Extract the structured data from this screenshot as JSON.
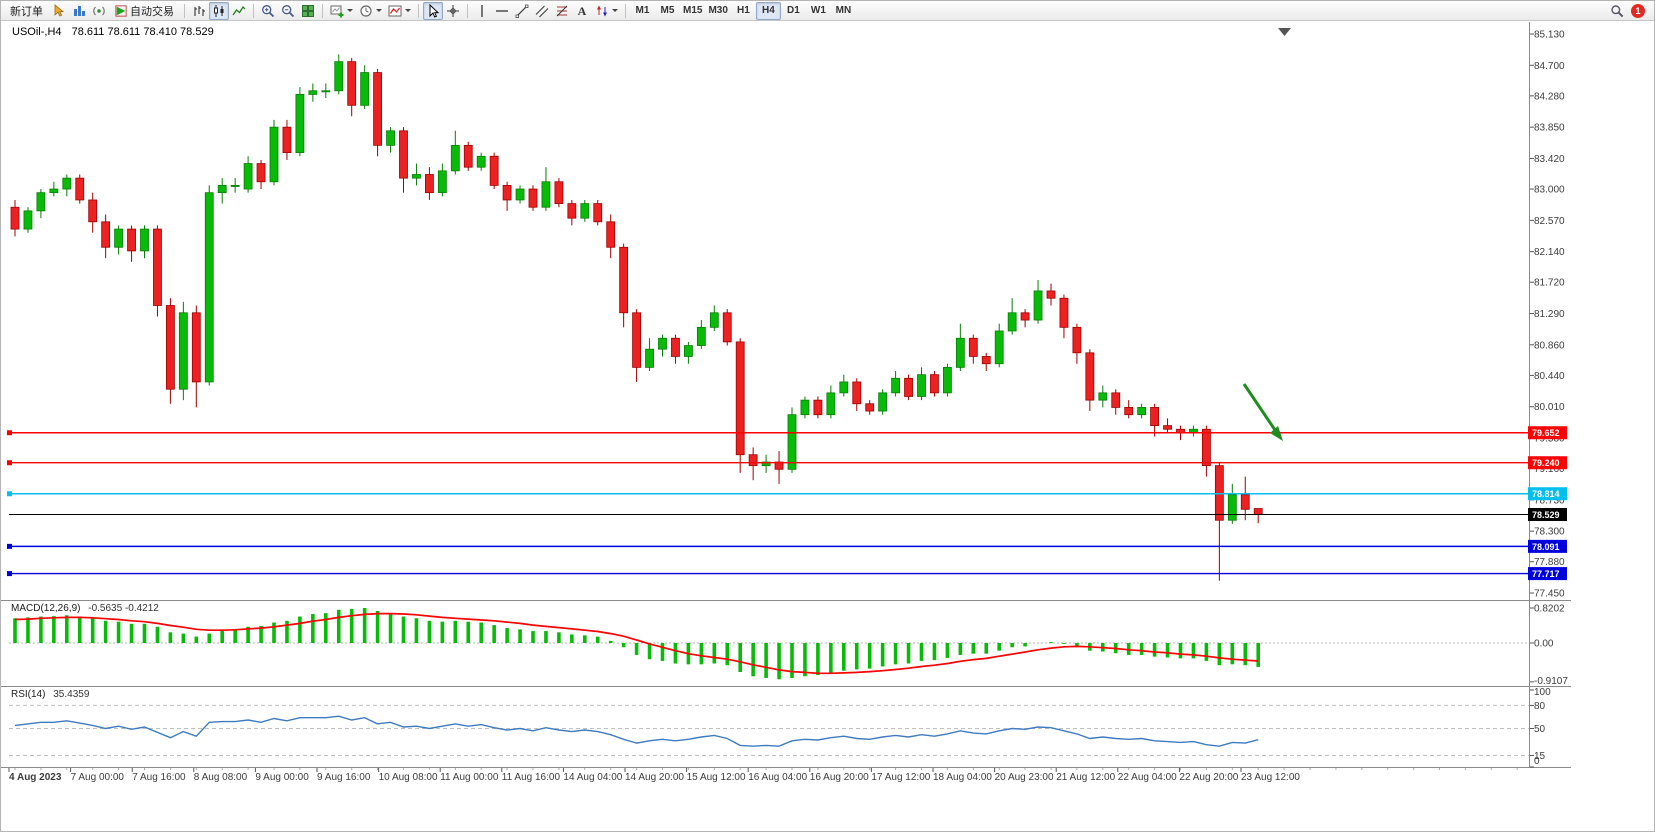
{
  "toolbar": {
    "new_order_label": "新订单",
    "auto_trading_label": "自动交易",
    "timeframes": [
      "M1",
      "M5",
      "M15",
      "M30",
      "H1",
      "H4",
      "D1",
      "W1",
      "MN"
    ],
    "active_timeframe": "H4",
    "notification_count": "1"
  },
  "chart": {
    "symbol_label": "USOil-,H4",
    "ohlc_label": "78.611 78.611 78.410 78.529",
    "macd_label": "MACD(12,26,9)",
    "macd_values": "-0.5635 -0.4212",
    "rsi_label": "RSI(14)",
    "rsi_value": "35.4359"
  },
  "chart_data": {
    "type": "candlestick",
    "symbol": "USOil-",
    "timeframe": "H4",
    "ohlc_display": {
      "open": 78.611,
      "high": 78.611,
      "low": 78.41,
      "close": 78.529
    },
    "y_axis": [
      85.13,
      84.7,
      84.28,
      83.85,
      83.42,
      83.0,
      82.57,
      82.14,
      81.72,
      81.29,
      80.86,
      80.44,
      80.01,
      79.58,
      79.16,
      78.73,
      78.3,
      77.88,
      77.45
    ],
    "x_axis": [
      "4 Aug 2023",
      "7 Aug 00:00",
      "7 Aug 16:00",
      "8 Aug 08:00",
      "9 Aug 00:00",
      "9 Aug 16:00",
      "10 Aug 08:00",
      "11 Aug 00:00",
      "11 Aug 16:00",
      "14 Aug 04:00",
      "14 Aug 20:00",
      "15 Aug 12:00",
      "16 Aug 04:00",
      "16 Aug 20:00",
      "17 Aug 12:00",
      "18 Aug 04:00",
      "20 Aug 23:00",
      "21 Aug 12:00",
      "22 Aug 04:00",
      "22 Aug 20:00",
      "23 Aug 12:00"
    ],
    "colors": {
      "bull": "#09BB09",
      "bear": "#EC2121",
      "bull_dark": "#067d06",
      "bear_dark": "#a00000",
      "macd_signal": "#FF0000",
      "rsi_line": "#3E7BC0",
      "line_red": "#FF0000",
      "line_blue": "#0000DD",
      "line_cyan": "#00BFEF",
      "current": "#000000",
      "arrow": "#1E8C1E"
    },
    "candles": [
      [
        82.75,
        82.85,
        82.35,
        82.45
      ],
      [
        82.45,
        82.75,
        82.4,
        82.7
      ],
      [
        82.7,
        83.0,
        82.6,
        82.95
      ],
      [
        82.95,
        83.1,
        82.9,
        83.0
      ],
      [
        83.0,
        83.2,
        82.9,
        83.15
      ],
      [
        83.15,
        83.2,
        82.8,
        82.85
      ],
      [
        82.85,
        82.95,
        82.4,
        82.55
      ],
      [
        82.55,
        82.65,
        82.05,
        82.2
      ],
      [
        82.2,
        82.5,
        82.1,
        82.45
      ],
      [
        82.45,
        82.5,
        82.0,
        82.15
      ],
      [
        82.15,
        82.5,
        82.05,
        82.45
      ],
      [
        82.45,
        82.5,
        81.25,
        81.4
      ],
      [
        81.4,
        81.5,
        80.05,
        80.25
      ],
      [
        80.25,
        81.45,
        80.1,
        81.3
      ],
      [
        81.3,
        81.4,
        80.0,
        80.35
      ],
      [
        80.35,
        83.05,
        80.3,
        82.95
      ],
      [
        82.95,
        83.15,
        82.8,
        83.05
      ],
      [
        83.05,
        83.15,
        82.95,
        83.05
      ],
      [
        83.0,
        83.45,
        82.95,
        83.35
      ],
      [
        83.35,
        83.4,
        83.0,
        83.1
      ],
      [
        83.1,
        83.95,
        83.05,
        83.85
      ],
      [
        83.85,
        83.95,
        83.4,
        83.5
      ],
      [
        83.5,
        84.4,
        83.45,
        84.3
      ],
      [
        84.3,
        84.45,
        84.2,
        84.35
      ],
      [
        84.35,
        84.45,
        84.25,
        84.35
      ],
      [
        84.35,
        84.85,
        84.3,
        84.75
      ],
      [
        84.75,
        84.8,
        84.0,
        84.15
      ],
      [
        84.15,
        84.7,
        84.1,
        84.6
      ],
      [
        84.6,
        84.65,
        83.45,
        83.6
      ],
      [
        83.6,
        83.85,
        83.5,
        83.8
      ],
      [
        83.8,
        83.85,
        82.95,
        83.15
      ],
      [
        83.15,
        83.35,
        83.05,
        83.2
      ],
      [
        83.2,
        83.3,
        82.85,
        82.95
      ],
      [
        82.95,
        83.35,
        82.9,
        83.25
      ],
      [
        83.25,
        83.8,
        83.2,
        83.6
      ],
      [
        83.6,
        83.65,
        83.25,
        83.3
      ],
      [
        83.3,
        83.5,
        83.25,
        83.45
      ],
      [
        83.45,
        83.5,
        83.0,
        83.05
      ],
      [
        83.05,
        83.1,
        82.7,
        82.85
      ],
      [
        82.85,
        83.05,
        82.8,
        83.0
      ],
      [
        83.0,
        83.05,
        82.7,
        82.75
      ],
      [
        82.75,
        83.3,
        82.7,
        83.1
      ],
      [
        83.1,
        83.15,
        82.75,
        82.8
      ],
      [
        82.8,
        82.85,
        82.5,
        82.6
      ],
      [
        82.6,
        82.85,
        82.55,
        82.8
      ],
      [
        82.8,
        82.85,
        82.5,
        82.55
      ],
      [
        82.55,
        82.65,
        82.05,
        82.2
      ],
      [
        82.2,
        82.25,
        81.1,
        81.3
      ],
      [
        81.3,
        81.35,
        80.35,
        80.55
      ],
      [
        80.55,
        80.95,
        80.5,
        80.8
      ],
      [
        80.8,
        81.0,
        80.7,
        80.95
      ],
      [
        80.95,
        81.0,
        80.6,
        80.7
      ],
      [
        80.7,
        80.9,
        80.6,
        80.85
      ],
      [
        80.85,
        81.2,
        80.8,
        81.1
      ],
      [
        81.1,
        81.4,
        81.05,
        81.3
      ],
      [
        81.3,
        81.35,
        80.85,
        80.9
      ],
      [
        80.9,
        80.95,
        79.1,
        79.35
      ],
      [
        79.35,
        79.45,
        79.0,
        79.2
      ],
      [
        79.2,
        79.35,
        79.1,
        79.25
      ],
      [
        79.25,
        79.4,
        78.95,
        79.15
      ],
      [
        79.15,
        80.0,
        79.1,
        79.9
      ],
      [
        79.9,
        80.15,
        79.85,
        80.1
      ],
      [
        80.1,
        80.15,
        79.85,
        79.9
      ],
      [
        79.9,
        80.3,
        79.85,
        80.2
      ],
      [
        80.2,
        80.45,
        80.15,
        80.35
      ],
      [
        80.35,
        80.4,
        79.95,
        80.05
      ],
      [
        80.05,
        80.1,
        79.9,
        79.95
      ],
      [
        79.95,
        80.25,
        79.9,
        80.2
      ],
      [
        80.2,
        80.5,
        80.15,
        80.4
      ],
      [
        80.4,
        80.45,
        80.1,
        80.15
      ],
      [
        80.15,
        80.55,
        80.1,
        80.45
      ],
      [
        80.45,
        80.5,
        80.15,
        80.2
      ],
      [
        80.2,
        80.6,
        80.15,
        80.55
      ],
      [
        80.55,
        81.15,
        80.5,
        80.95
      ],
      [
        80.95,
        81.0,
        80.6,
        80.7
      ],
      [
        80.7,
        80.75,
        80.5,
        80.6
      ],
      [
        80.6,
        81.15,
        80.55,
        81.05
      ],
      [
        81.05,
        81.5,
        81.0,
        81.3
      ],
      [
        81.3,
        81.35,
        81.1,
        81.2
      ],
      [
        81.2,
        81.75,
        81.15,
        81.6
      ],
      [
        81.6,
        81.7,
        81.4,
        81.5
      ],
      [
        81.5,
        81.55,
        80.95,
        81.1
      ],
      [
        81.1,
        81.15,
        80.6,
        80.75
      ],
      [
        80.75,
        80.8,
        79.95,
        80.1
      ],
      [
        80.1,
        80.3,
        80.0,
        80.2
      ],
      [
        80.2,
        80.25,
        79.9,
        80.0
      ],
      [
        80.0,
        80.1,
        79.85,
        79.9
      ],
      [
        79.9,
        80.05,
        79.85,
        80.0
      ],
      [
        80.0,
        80.05,
        79.6,
        79.75
      ],
      [
        79.75,
        79.85,
        79.65,
        79.7
      ],
      [
        79.7,
        79.75,
        79.55,
        79.65
      ],
      [
        79.65,
        79.75,
        79.6,
        79.7
      ],
      [
        79.7,
        79.75,
        79.05,
        79.2
      ],
      [
        79.2,
        79.25,
        77.62,
        78.45
      ],
      [
        78.45,
        78.95,
        78.4,
        78.8
      ],
      [
        78.8,
        79.05,
        78.45,
        78.6
      ],
      [
        78.611,
        78.611,
        78.41,
        78.529
      ]
    ],
    "h_lines": [
      {
        "price": 79.652,
        "color": "#FF0000",
        "label": "79.652",
        "type": "resistance"
      },
      {
        "price": 79.24,
        "color": "#FF0000",
        "label": "79.240",
        "type": "resistance"
      },
      {
        "price": 78.814,
        "color": "#00BFEF",
        "label": "78.814",
        "type": "level"
      },
      {
        "price": 78.529,
        "color": "#000000",
        "label": "78.529",
        "type": "current-price"
      },
      {
        "price": 78.091,
        "color": "#0000DD",
        "label": "78.091",
        "type": "support"
      },
      {
        "price": 77.717,
        "color": "#0000DD",
        "label": "77.717",
        "type": "support"
      }
    ],
    "annotations": [
      {
        "type": "arrow",
        "color": "#1E8C1E",
        "from_price": 80.35,
        "to_price": 79.6,
        "note": "green arrow pointing down to 79.652 resistance line"
      }
    ],
    "macd": {
      "label": "MACD(12,26,9)",
      "current_values": [
        -0.5635,
        -0.4212
      ],
      "axis_labels": [
        "0.8202",
        "0.00",
        "-0.9107"
      ],
      "range": [
        -0.9107,
        0.8202
      ],
      "histogram": [
        0.58,
        0.6,
        0.62,
        0.63,
        0.65,
        0.62,
        0.58,
        0.52,
        0.5,
        0.45,
        0.45,
        0.38,
        0.25,
        0.22,
        0.15,
        0.22,
        0.28,
        0.32,
        0.38,
        0.4,
        0.48,
        0.52,
        0.62,
        0.68,
        0.7,
        0.78,
        0.8,
        0.82,
        0.75,
        0.7,
        0.62,
        0.58,
        0.52,
        0.5,
        0.52,
        0.5,
        0.48,
        0.42,
        0.35,
        0.32,
        0.28,
        0.28,
        0.25,
        0.2,
        0.18,
        0.15,
        0.05,
        -0.1,
        -0.28,
        -0.38,
        -0.42,
        -0.48,
        -0.5,
        -0.5,
        -0.48,
        -0.52,
        -0.68,
        -0.78,
        -0.82,
        -0.85,
        -0.82,
        -0.78,
        -0.75,
        -0.7,
        -0.65,
        -0.62,
        -0.6,
        -0.55,
        -0.5,
        -0.48,
        -0.42,
        -0.4,
        -0.35,
        -0.28,
        -0.25,
        -0.25,
        -0.18,
        -0.1,
        -0.08,
        0.0,
        0.02,
        -0.02,
        -0.08,
        -0.18,
        -0.2,
        -0.24,
        -0.28,
        -0.28,
        -0.32,
        -0.34,
        -0.36,
        -0.36,
        -0.42,
        -0.52,
        -0.5,
        -0.52,
        -0.5635
      ],
      "signal": [
        0.55,
        0.56,
        0.58,
        0.59,
        0.6,
        0.6,
        0.59,
        0.57,
        0.55,
        0.52,
        0.5,
        0.46,
        0.41,
        0.37,
        0.32,
        0.3,
        0.3,
        0.31,
        0.33,
        0.35,
        0.38,
        0.42,
        0.46,
        0.51,
        0.55,
        0.6,
        0.64,
        0.67,
        0.69,
        0.69,
        0.68,
        0.66,
        0.63,
        0.6,
        0.58,
        0.56,
        0.54,
        0.52,
        0.49,
        0.46,
        0.42,
        0.39,
        0.36,
        0.33,
        0.3,
        0.27,
        0.22,
        0.16,
        0.07,
        -0.02,
        -0.1,
        -0.18,
        -0.25,
        -0.3,
        -0.34,
        -0.38,
        -0.44,
        -0.51,
        -0.57,
        -0.63,
        -0.67,
        -0.69,
        -0.71,
        -0.71,
        -0.7,
        -0.69,
        -0.67,
        -0.65,
        -0.62,
        -0.59,
        -0.55,
        -0.52,
        -0.48,
        -0.43,
        -0.39,
        -0.36,
        -0.31,
        -0.26,
        -0.21,
        -0.16,
        -0.12,
        -0.09,
        -0.08,
        -0.09,
        -0.11,
        -0.13,
        -0.16,
        -0.18,
        -0.21,
        -0.23,
        -0.26,
        -0.28,
        -0.31,
        -0.35,
        -0.38,
        -0.4,
        -0.4212
      ]
    },
    "rsi": {
      "label": "RSI(14)",
      "current_value": 35.4359,
      "levels": [
        100,
        80,
        50,
        15,
        0
      ],
      "levels_dashed": [
        80,
        50,
        15
      ],
      "values": [
        54,
        56,
        58,
        58,
        60,
        57,
        54,
        50,
        53,
        49,
        52,
        45,
        38,
        46,
        40,
        58,
        59,
        59,
        61,
        58,
        63,
        60,
        64,
        64,
        64,
        66,
        61,
        64,
        56,
        58,
        52,
        53,
        50,
        53,
        56,
        53,
        55,
        51,
        48,
        50,
        47,
        51,
        48,
        46,
        48,
        46,
        42,
        36,
        31,
        34,
        36,
        34,
        36,
        39,
        41,
        37,
        28,
        27,
        28,
        27,
        34,
        36,
        35,
        38,
        40,
        37,
        36,
        39,
        41,
        39,
        42,
        40,
        43,
        47,
        44,
        43,
        47,
        50,
        49,
        52,
        51,
        47,
        43,
        37,
        39,
        37,
        36,
        37,
        34,
        33,
        32,
        33,
        29,
        27,
        32,
        31,
        35.4359
      ]
    }
  }
}
